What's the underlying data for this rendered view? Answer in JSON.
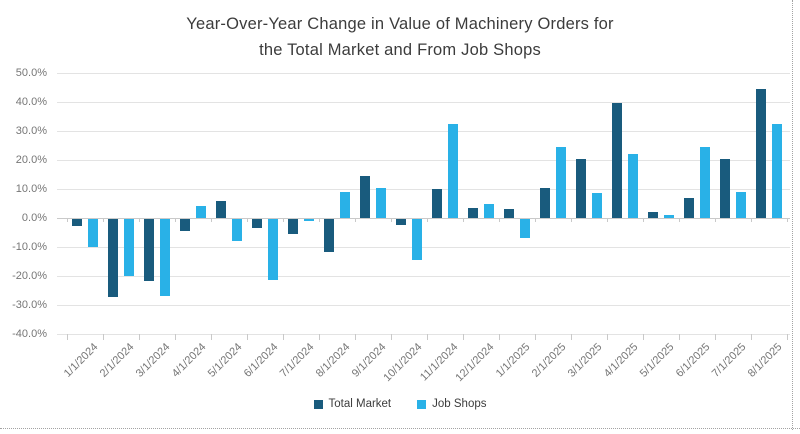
{
  "title": {
    "line1": "Year-Over-Year Change in Value of Machinery Orders for",
    "line2": "the Total Market and From Job Shops"
  },
  "y_axis": {
    "tick_labels": [
      "50.0%",
      "40.0%",
      "30.0%",
      "20.0%",
      "10.0%",
      "0.0%",
      "-10.0%",
      "-20.0%",
      "-30.0%",
      "-40.0%"
    ],
    "tick_values": [
      50,
      40,
      30,
      20,
      10,
      0,
      -10,
      -20,
      -30,
      -40
    ]
  },
  "legend": {
    "items": [
      "Total Market",
      "Job Shops"
    ]
  },
  "colors": {
    "total_market": "#195b7d",
    "job_shops": "#29b1e7",
    "gridline": "#e3e3e3",
    "zero_line": "#c9c9c9",
    "axis_text": "#767676",
    "title_text": "#3c3c3c"
  },
  "chart_data": {
    "type": "bar",
    "title": "Year-Over-Year Change in Value of Machinery Orders for the Total Market and From Job Shops",
    "categories": [
      "1/1/2024",
      "2/1/2024",
      "3/1/2024",
      "4/1/2024",
      "5/1/2024",
      "6/1/2024",
      "7/1/2024",
      "8/1/2024",
      "9/1/2024",
      "10/1/2024",
      "11/1/2024",
      "12/1/2024",
      "1/1/2025",
      "2/1/2025",
      "3/1/2025",
      "4/1/2025",
      "5/1/2025",
      "6/1/2025",
      "7/1/2025",
      "8/1/2025"
    ],
    "series": [
      {
        "name": "Total Market",
        "color": "#195b7d",
        "values": [
          -2.5,
          -27.0,
          -21.5,
          -4.0,
          6.0,
          -3.0,
          -5.0,
          -11.5,
          14.5,
          -2.0,
          10.0,
          3.5,
          3.0,
          10.5,
          20.5,
          39.5,
          2.0,
          7.0,
          20.5,
          44.5
        ]
      },
      {
        "name": "Job Shops",
        "color": "#29b1e7",
        "values": [
          -9.5,
          -19.5,
          -26.5,
          4.0,
          -7.5,
          -21.0,
          -0.5,
          9.0,
          10.5,
          -14.0,
          32.5,
          5.0,
          -6.5,
          24.5,
          8.5,
          22.0,
          1.0,
          24.5,
          9.0,
          32.5
        ]
      }
    ],
    "ylim": [
      -40,
      50
    ],
    "ytick_step": 10,
    "ytick_format": "0.0%",
    "grid": true,
    "legend_position": "bottom",
    "x_label_rotation": -45
  }
}
